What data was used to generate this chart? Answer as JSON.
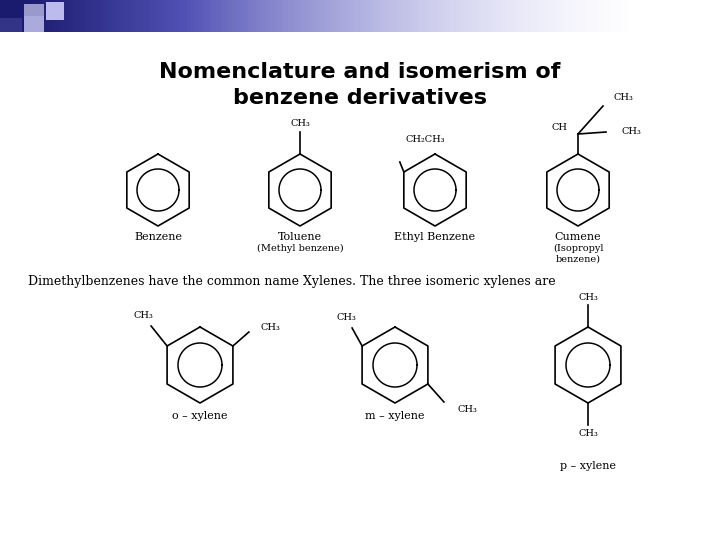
{
  "title_line1": "Nomenclature and isomerism of",
  "title_line2": "benzene derivatives",
  "title_fontsize": 16,
  "title_fontweight": "bold",
  "bg_color": "#ffffff",
  "text_color": "#000000",
  "font_label": 8,
  "font_chem": 7,
  "xylene_text": "Dimethylbenzenes have the common name Xylenes. The three isomeric xylenes are",
  "xylene_text_fontsize": 9
}
